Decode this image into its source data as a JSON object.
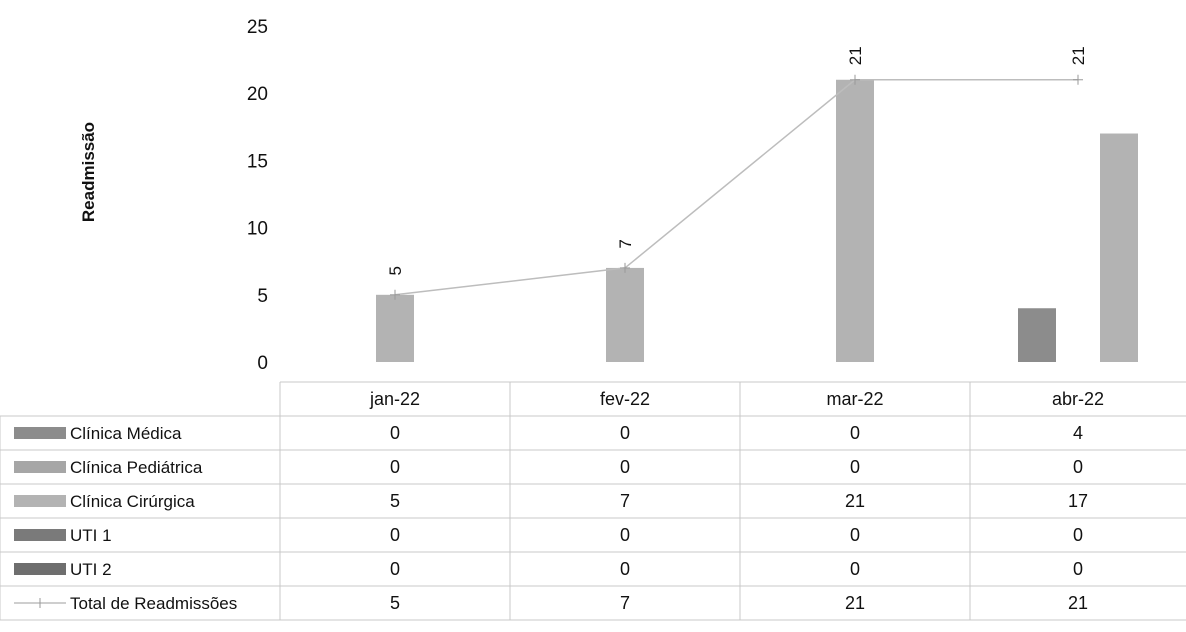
{
  "chart_data": {
    "type": "bar",
    "ylabel": "Readmissão",
    "ylim": [
      0,
      25
    ],
    "yticks": [
      0,
      5,
      10,
      15,
      20,
      25
    ],
    "categories": [
      "jan-22",
      "fev-22",
      "mar-22",
      "abr-22"
    ],
    "series": [
      {
        "name": "Clínica Médica",
        "type": "bar",
        "values": [
          0,
          0,
          0,
          4
        ],
        "color": "#8c8c8c"
      },
      {
        "name": "Clínica Pediátrica",
        "type": "bar",
        "values": [
          0,
          0,
          0,
          0
        ],
        "color": "#a6a6a6"
      },
      {
        "name": "Clínica Cirúrgica",
        "type": "bar",
        "values": [
          5,
          7,
          21,
          17
        ],
        "color": "#b3b3b3"
      },
      {
        "name": "UTI 1",
        "type": "bar",
        "values": [
          0,
          0,
          0,
          0
        ],
        "color": "#7a7a7a"
      },
      {
        "name": "UTI 2",
        "type": "bar",
        "values": [
          0,
          0,
          0,
          0
        ],
        "color": "#6e6e6e"
      },
      {
        "name": "Total de Readmissões",
        "type": "line",
        "values": [
          5,
          7,
          21,
          21
        ],
        "color": "#bdbdbd"
      }
    ],
    "data_labels_series": "Total de Readmissões",
    "data_table": true,
    "grid": false
  }
}
